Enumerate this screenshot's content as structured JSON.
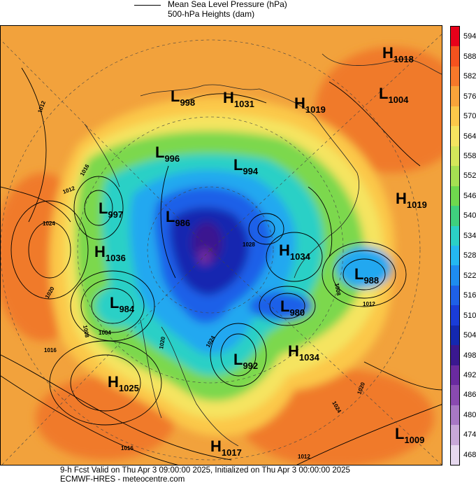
{
  "legend": {
    "line_label": "Mean Sea Level Pressure (hPa)",
    "fill_label": "500-hPa Heights (dam)"
  },
  "colorbar": {
    "ticks": [
      "594",
      "588",
      "582",
      "576",
      "570",
      "564",
      "558",
      "552",
      "546",
      "540",
      "534",
      "528",
      "522",
      "516",
      "510",
      "504",
      "498",
      "492",
      "486",
      "480",
      "474",
      "468"
    ],
    "colors": [
      "#e8001a",
      "#f4521e",
      "#f7782a",
      "#f9a43a",
      "#fbc84a",
      "#f5e460",
      "#d4e65a",
      "#a6e052",
      "#6fd84e",
      "#3fd07e",
      "#2bd0c6",
      "#24b8f0",
      "#1e8cf0",
      "#1e60e8",
      "#1a3cd8",
      "#1428b0",
      "#3a1890",
      "#6a2aa0",
      "#8a4ab0",
      "#a878c4",
      "#c8a8d8",
      "#e6d8ee"
    ]
  },
  "centers": [
    {
      "type": "H",
      "value": "1018"
    },
    {
      "type": "L",
      "value": "1004"
    },
    {
      "type": "L",
      "value": "998"
    },
    {
      "type": "H",
      "value": "1031"
    },
    {
      "type": "H",
      "value": "1019"
    },
    {
      "type": "L",
      "value": "996"
    },
    {
      "type": "L",
      "value": "994"
    },
    {
      "type": "H",
      "value": "1019"
    },
    {
      "type": "L",
      "value": "997"
    },
    {
      "type": "L",
      "value": "986"
    },
    {
      "type": "H",
      "value": "1036"
    },
    {
      "type": "H",
      "value": "1034"
    },
    {
      "type": "L",
      "value": "988"
    },
    {
      "type": "L",
      "value": "984"
    },
    {
      "type": "L",
      "value": "980"
    },
    {
      "type": "H",
      "value": "1034"
    },
    {
      "type": "L",
      "value": "992"
    },
    {
      "type": "H",
      "value": "1025"
    },
    {
      "type": "L",
      "value": "1009"
    },
    {
      "type": "H",
      "value": "1017"
    }
  ],
  "isobar_labels": [
    "1012",
    "1016",
    "1012",
    "1024",
    "1020",
    "1008",
    "1004",
    "1016",
    "1020",
    "1024",
    "1028",
    "1012",
    "1008",
    "1016",
    "1012",
    "1020",
    "1024"
  ],
  "footer": {
    "line1": "9-h Fcst Valid on Thu Apr  3 09:00:00 2025, Initialized on Thu Apr  3 00:00:00 2025",
    "line2": "ECMWF-HRES  - meteocentre.com"
  }
}
